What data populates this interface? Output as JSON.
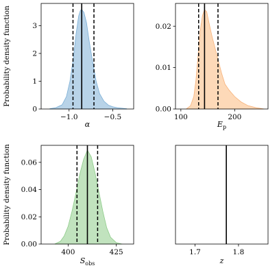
{
  "chart_data": [
    {
      "type": "area",
      "xlabel": "α",
      "ylabel": "Probability density function",
      "xlim": [
        -1.32,
        -0.26
      ],
      "ylim": [
        0,
        3.8
      ],
      "xticks": [
        -1.0,
        -0.5
      ],
      "xtick_labels": [
        "−1.0",
        "−0.5"
      ],
      "yticks": [
        0,
        1,
        2,
        3
      ],
      "ytick_labels": [
        "0",
        "1",
        "2",
        "3"
      ],
      "color": "#a6c8e2",
      "edge_color": "#7aaed6",
      "x": [
        -1.22,
        -1.15,
        -1.08,
        -1.03,
        -0.99,
        -0.95,
        -0.92,
        -0.89,
        -0.87,
        -0.855,
        -0.83,
        -0.8,
        -0.77,
        -0.73,
        -0.69,
        -0.65,
        -0.6,
        -0.55,
        -0.5,
        -0.45,
        -0.4,
        -0.34
      ],
      "values": [
        0.01,
        0.05,
        0.15,
        0.45,
        1.0,
        1.85,
        2.7,
        3.35,
        3.55,
        3.58,
        3.48,
        3.1,
        2.45,
        1.7,
        1.0,
        0.55,
        0.28,
        0.14,
        0.08,
        0.05,
        0.03,
        0.01
      ],
      "median": -0.855,
      "lower": -0.955,
      "upper": -0.715
    },
    {
      "type": "area",
      "xlabel": "Ep",
      "xlabel_main": "E",
      "xlabel_sub": "p",
      "ylabel": "",
      "xlim": [
        90,
        262
      ],
      "ylim": [
        0,
        0.0255
      ],
      "xticks": [
        100,
        200
      ],
      "xtick_labels": [
        "100",
        "200"
      ],
      "yticks": [
        0,
        0.01,
        0.02
      ],
      "ytick_labels": [
        "0.00",
        "0.01",
        "0.02"
      ],
      "color": "#fdd0a6",
      "edge_color": "#f7b27a",
      "x": [
        110,
        118,
        124,
        128,
        132,
        136,
        140,
        144,
        148,
        152,
        158,
        164,
        170,
        176,
        182,
        190,
        200,
        212,
        225,
        240,
        255
      ],
      "values": [
        0.0,
        0.0008,
        0.003,
        0.007,
        0.013,
        0.019,
        0.0225,
        0.024,
        0.0235,
        0.021,
        0.0175,
        0.0145,
        0.0115,
        0.0085,
        0.006,
        0.0045,
        0.003,
        0.0017,
        0.0008,
        0.0003,
        0.0
      ],
      "median": 144,
      "lower": 133,
      "upper": 169
    },
    {
      "type": "area",
      "xlabel": "Sobs",
      "xlabel_main": "S",
      "xlabel_sub": "obs",
      "ylabel": "Probability density function",
      "xlim": [
        386,
        434
      ],
      "ylim": [
        0,
        0.0725
      ],
      "xticks": [
        400,
        425
      ],
      "xtick_labels": [
        "400",
        "425"
      ],
      "yticks": [
        0,
        0.02,
        0.04,
        0.06
      ],
      "ytick_labels": [
        "0.00",
        "0.02",
        "0.04",
        "0.06"
      ],
      "color": "#b1dcae",
      "edge_color": "#8ccb88",
      "x": [
        393,
        396,
        398,
        400,
        402,
        404,
        406,
        408,
        410,
        412,
        414,
        416,
        418,
        420,
        422,
        425,
        428
      ],
      "values": [
        0.0,
        0.002,
        0.006,
        0.013,
        0.024,
        0.037,
        0.051,
        0.062,
        0.069,
        0.064,
        0.052,
        0.038,
        0.024,
        0.012,
        0.005,
        0.001,
        0.0
      ],
      "median": 410,
      "lower": 404.6,
      "upper": 415.3
    },
    {
      "type": "line",
      "xlabel": "z",
      "ylabel": "",
      "xlim": [
        1.655,
        1.868
      ],
      "ylim": [
        0,
        1
      ],
      "xticks": [
        1.7,
        1.8
      ],
      "xtick_labels": [
        "1.7",
        "1.8"
      ],
      "yticks": [],
      "ytick_labels": [],
      "median": 1.772
    }
  ]
}
